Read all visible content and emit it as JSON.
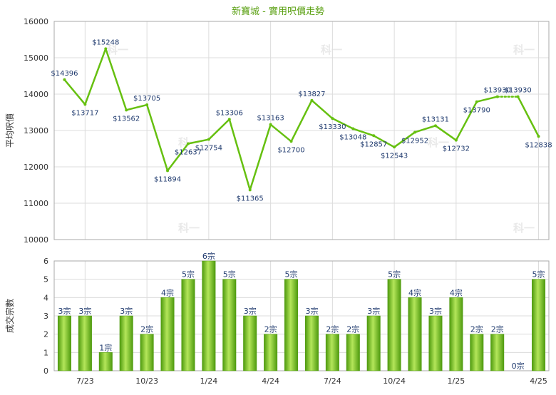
{
  "chart_data": [
    {
      "type": "line",
      "title": "新寶城 - 實用呎價走勢",
      "ylabel": "平均呎價",
      "ylim": [
        10000,
        16000
      ],
      "yticks": [
        10000,
        11000,
        12000,
        13000,
        14000,
        15000,
        16000
      ],
      "line_color": "#66c010",
      "series": [
        {
          "values": [
            14396,
            13717,
            15248,
            13562,
            13705,
            11894,
            12637,
            12754,
            13306,
            11365,
            13163,
            12700,
            13827,
            13330,
            13048,
            12857,
            12543,
            12952,
            13131,
            12732,
            13790,
            13930,
            13930,
            12838
          ],
          "labels": [
            "$14396",
            "$13717",
            "$15248",
            "$13562",
            "$13705",
            "$11894",
            "$12637",
            "$12754",
            "$13306",
            "$11365",
            "$13163",
            "$12700",
            "$13827",
            "$13330",
            "$13048",
            "$12857",
            "$12543",
            "$12952",
            "$13131",
            "$12732",
            "$13790",
            "$13930",
            "$13930",
            "$12838"
          ]
        }
      ]
    },
    {
      "type": "bar",
      "ylabel": "成交宗數",
      "ylim": [
        0,
        6
      ],
      "yticks": [
        0,
        1,
        2,
        3,
        4,
        5,
        6
      ],
      "categories": [
        "",
        "7/23",
        "",
        "",
        "10/23",
        "",
        "",
        "1/24",
        "",
        "",
        "4/24",
        "",
        "",
        "7/24",
        "",
        "",
        "10/24",
        "",
        "",
        "1/25",
        "",
        "",
        "",
        "4/25"
      ],
      "values": [
        3,
        3,
        1,
        3,
        2,
        4,
        5,
        6,
        5,
        3,
        2,
        5,
        3,
        2,
        2,
        3,
        5,
        4,
        3,
        4,
        2,
        2,
        0,
        5
      ],
      "labels": [
        "3宗",
        "3宗",
        "1宗",
        "3宗",
        "2宗",
        "4宗",
        "5宗",
        "6宗",
        "5宗",
        "3宗",
        "2宗",
        "5宗",
        "3宗",
        "2宗",
        "2宗",
        "3宗",
        "5宗",
        "4宗",
        "3宗",
        "4宗",
        "2宗",
        "2宗",
        "0宗",
        "5宗"
      ],
      "bar_color": "#7cc21e"
    }
  ],
  "watermark": "科一"
}
